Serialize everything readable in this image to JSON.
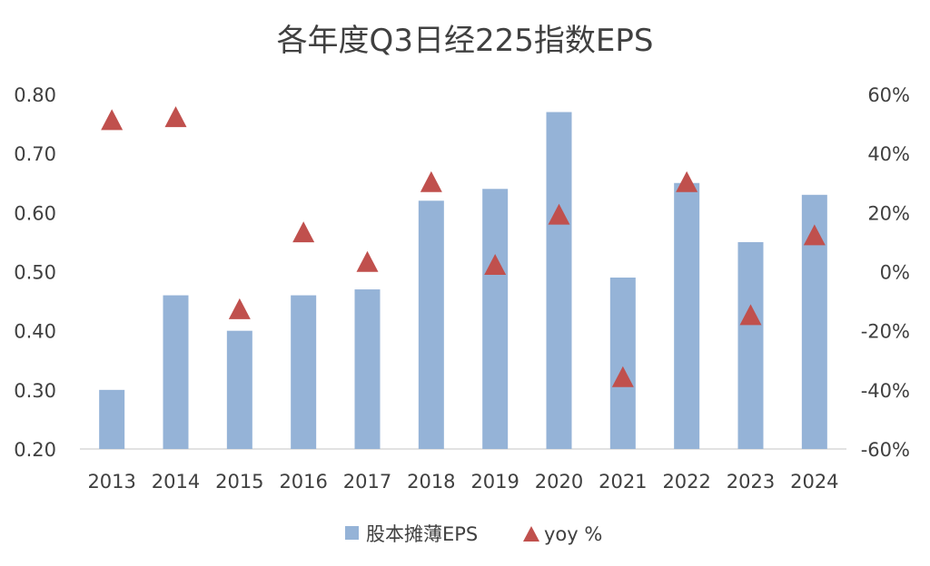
{
  "chart_data": {
    "type": "bar",
    "title": "各年度Q3日经225指数EPS",
    "categories": [
      "2013",
      "2014",
      "2015",
      "2016",
      "2017",
      "2018",
      "2019",
      "2020",
      "2021",
      "2022",
      "2023",
      "2024"
    ],
    "series": [
      {
        "name": "股本摊薄EPS",
        "type": "bar",
        "axis": "left",
        "color": "#95b3d7",
        "values": [
          0.3,
          0.46,
          0.4,
          0.46,
          0.47,
          0.62,
          0.64,
          0.77,
          0.49,
          0.65,
          0.55,
          0.63
        ]
      },
      {
        "name": "yoy %",
        "type": "scatter",
        "marker": "triangle",
        "axis": "right",
        "color": "#c0504d",
        "values": [
          51,
          52,
          -13,
          13,
          3,
          30,
          2,
          19,
          -36,
          30,
          -15,
          12
        ]
      }
    ],
    "y_left": {
      "ylim": [
        0.2,
        0.8
      ],
      "ticks": [
        "0.20",
        "0.30",
        "0.40",
        "0.50",
        "0.60",
        "0.70",
        "0.80"
      ]
    },
    "y_right": {
      "ylim": [
        -60,
        60
      ],
      "ticks": [
        "-60%",
        "-40%",
        "-20%",
        "0%",
        "20%",
        "40%",
        "60%"
      ]
    },
    "legend_position": "bottom",
    "grid": false
  }
}
